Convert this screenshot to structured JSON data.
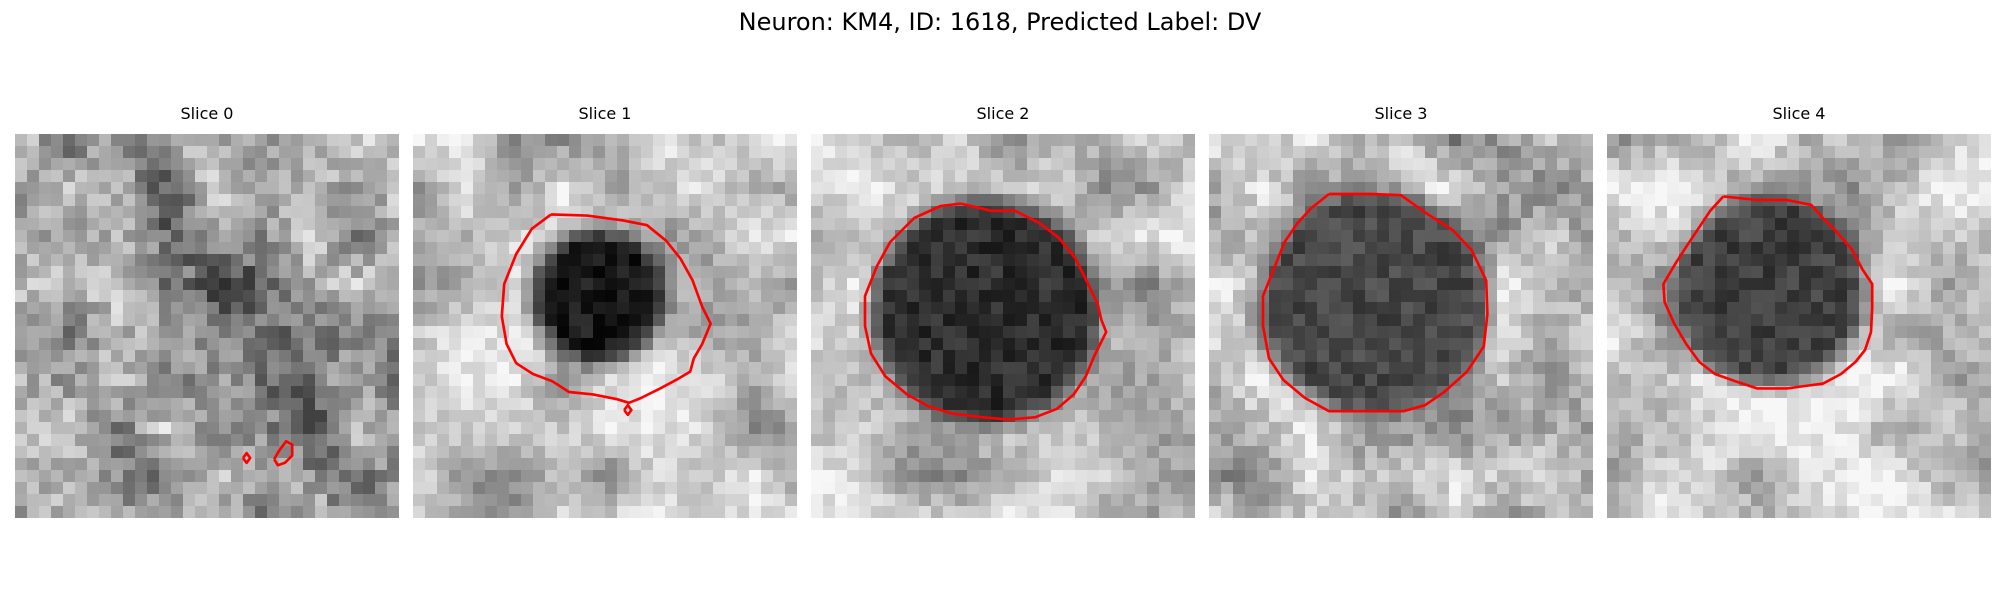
{
  "figure": {
    "title": "Neuron: KM4, ID: 1618, Predicted Label: DV"
  },
  "panels": [
    {
      "title": "Slice 0",
      "contours": [
        [
          [
            19.0,
            27.0
          ],
          [
            19.3,
            26.6
          ],
          [
            19.6,
            27.0
          ],
          [
            19.3,
            27.4
          ],
          [
            19.0,
            27.0
          ]
        ],
        [
          [
            21.6,
            27.1
          ],
          [
            22.0,
            26.4
          ],
          [
            22.6,
            25.6
          ],
          [
            23.1,
            25.9
          ],
          [
            23.1,
            26.8
          ],
          [
            22.5,
            27.4
          ],
          [
            21.9,
            27.6
          ],
          [
            21.6,
            27.1
          ]
        ]
      ]
    },
    {
      "title": "Slice 1",
      "contours": [
        [
          [
            11.5,
            6.7
          ],
          [
            14.5,
            6.8
          ],
          [
            17.5,
            7.2
          ],
          [
            19.5,
            7.6
          ],
          [
            21.1,
            8.9
          ],
          [
            22.3,
            10.4
          ],
          [
            23.3,
            12.2
          ],
          [
            24.1,
            14.4
          ],
          [
            24.8,
            15.8
          ],
          [
            24.1,
            17.5
          ],
          [
            23.4,
            18.7
          ],
          [
            23.1,
            19.8
          ],
          [
            22.1,
            20.4
          ],
          [
            20.6,
            21.2
          ],
          [
            19.0,
            22.0
          ],
          [
            18.0,
            22.4
          ],
          [
            17.0,
            22.1
          ],
          [
            15.0,
            21.7
          ],
          [
            13.0,
            21.5
          ],
          [
            11.6,
            20.6
          ],
          [
            10.0,
            20.0
          ],
          [
            8.6,
            19.1
          ],
          [
            7.8,
            17.5
          ],
          [
            7.4,
            15.2
          ],
          [
            7.6,
            12.5
          ],
          [
            8.6,
            10.0
          ],
          [
            9.9,
            7.9
          ],
          [
            11.5,
            6.7
          ]
        ],
        [
          [
            17.6,
            23.0
          ],
          [
            17.9,
            22.6
          ],
          [
            18.2,
            23.0
          ],
          [
            17.9,
            23.4
          ],
          [
            17.6,
            23.0
          ]
        ]
      ]
    },
    {
      "title": "Slice 2",
      "contours": [
        [
          [
            12.5,
            5.8
          ],
          [
            15.0,
            6.4
          ],
          [
            17.0,
            6.4
          ],
          [
            19.0,
            7.4
          ],
          [
            20.6,
            8.6
          ],
          [
            22.0,
            10.3
          ],
          [
            23.0,
            12.3
          ],
          [
            23.9,
            14.2
          ],
          [
            24.2,
            15.5
          ],
          [
            24.6,
            16.5
          ],
          [
            24.1,
            17.5
          ],
          [
            23.6,
            18.5
          ],
          [
            22.9,
            20.2
          ],
          [
            21.9,
            21.7
          ],
          [
            20.5,
            22.9
          ],
          [
            18.7,
            23.6
          ],
          [
            16.5,
            23.8
          ],
          [
            14.2,
            23.6
          ],
          [
            11.8,
            23.3
          ],
          [
            9.8,
            22.7
          ],
          [
            8.0,
            21.7
          ],
          [
            6.2,
            20.2
          ],
          [
            5.0,
            18.3
          ],
          [
            4.5,
            16.0
          ],
          [
            4.5,
            13.5
          ],
          [
            5.5,
            11.0
          ],
          [
            6.6,
            9.0
          ],
          [
            8.6,
            7.0
          ],
          [
            10.8,
            6.0
          ],
          [
            12.5,
            5.8
          ]
        ]
      ]
    },
    {
      "title": "Slice 3",
      "contours": [
        [
          [
            10.0,
            5.0
          ],
          [
            13.5,
            5.0
          ],
          [
            16.0,
            5.1
          ],
          [
            18.1,
            6.6
          ],
          [
            20.3,
            8.0
          ],
          [
            21.9,
            9.7
          ],
          [
            23.1,
            12.2
          ],
          [
            23.2,
            15.0
          ],
          [
            22.9,
            17.7
          ],
          [
            21.5,
            19.8
          ],
          [
            19.6,
            21.5
          ],
          [
            18.0,
            22.6
          ],
          [
            16.2,
            23.1
          ],
          [
            13.0,
            23.1
          ],
          [
            10.0,
            23.1
          ],
          [
            8.0,
            22.0
          ],
          [
            6.2,
            20.5
          ],
          [
            5.0,
            18.7
          ],
          [
            4.5,
            16.0
          ],
          [
            4.5,
            13.5
          ],
          [
            5.5,
            11.0
          ],
          [
            6.3,
            9.0
          ],
          [
            7.4,
            7.4
          ],
          [
            8.5,
            6.2
          ],
          [
            10.0,
            5.0
          ]
        ]
      ]
    },
    {
      "title": "Slice 4",
      "contours": [
        [
          [
            9.7,
            5.2
          ],
          [
            12.5,
            5.5
          ],
          [
            15.0,
            5.5
          ],
          [
            17.0,
            5.9
          ],
          [
            18.0,
            7.0
          ],
          [
            19.0,
            8.0
          ],
          [
            20.4,
            9.6
          ],
          [
            21.3,
            11.3
          ],
          [
            22.1,
            12.5
          ],
          [
            22.1,
            14.5
          ],
          [
            22.0,
            16.5
          ],
          [
            21.5,
            18.0
          ],
          [
            20.7,
            19.0
          ],
          [
            19.5,
            20.0
          ],
          [
            18.0,
            20.8
          ],
          [
            16.5,
            21.0
          ],
          [
            15.0,
            21.2
          ],
          [
            12.5,
            21.2
          ],
          [
            10.7,
            20.6
          ],
          [
            9.0,
            20.0
          ],
          [
            7.7,
            19.0
          ],
          [
            6.6,
            17.5
          ],
          [
            5.6,
            15.8
          ],
          [
            4.8,
            14.0
          ],
          [
            4.7,
            12.5
          ],
          [
            5.7,
            10.8
          ],
          [
            6.6,
            9.4
          ],
          [
            7.6,
            7.9
          ],
          [
            8.6,
            6.4
          ],
          [
            9.7,
            5.2
          ]
        ]
      ]
    }
  ],
  "colors": {
    "contour": "#ff0000"
  }
}
